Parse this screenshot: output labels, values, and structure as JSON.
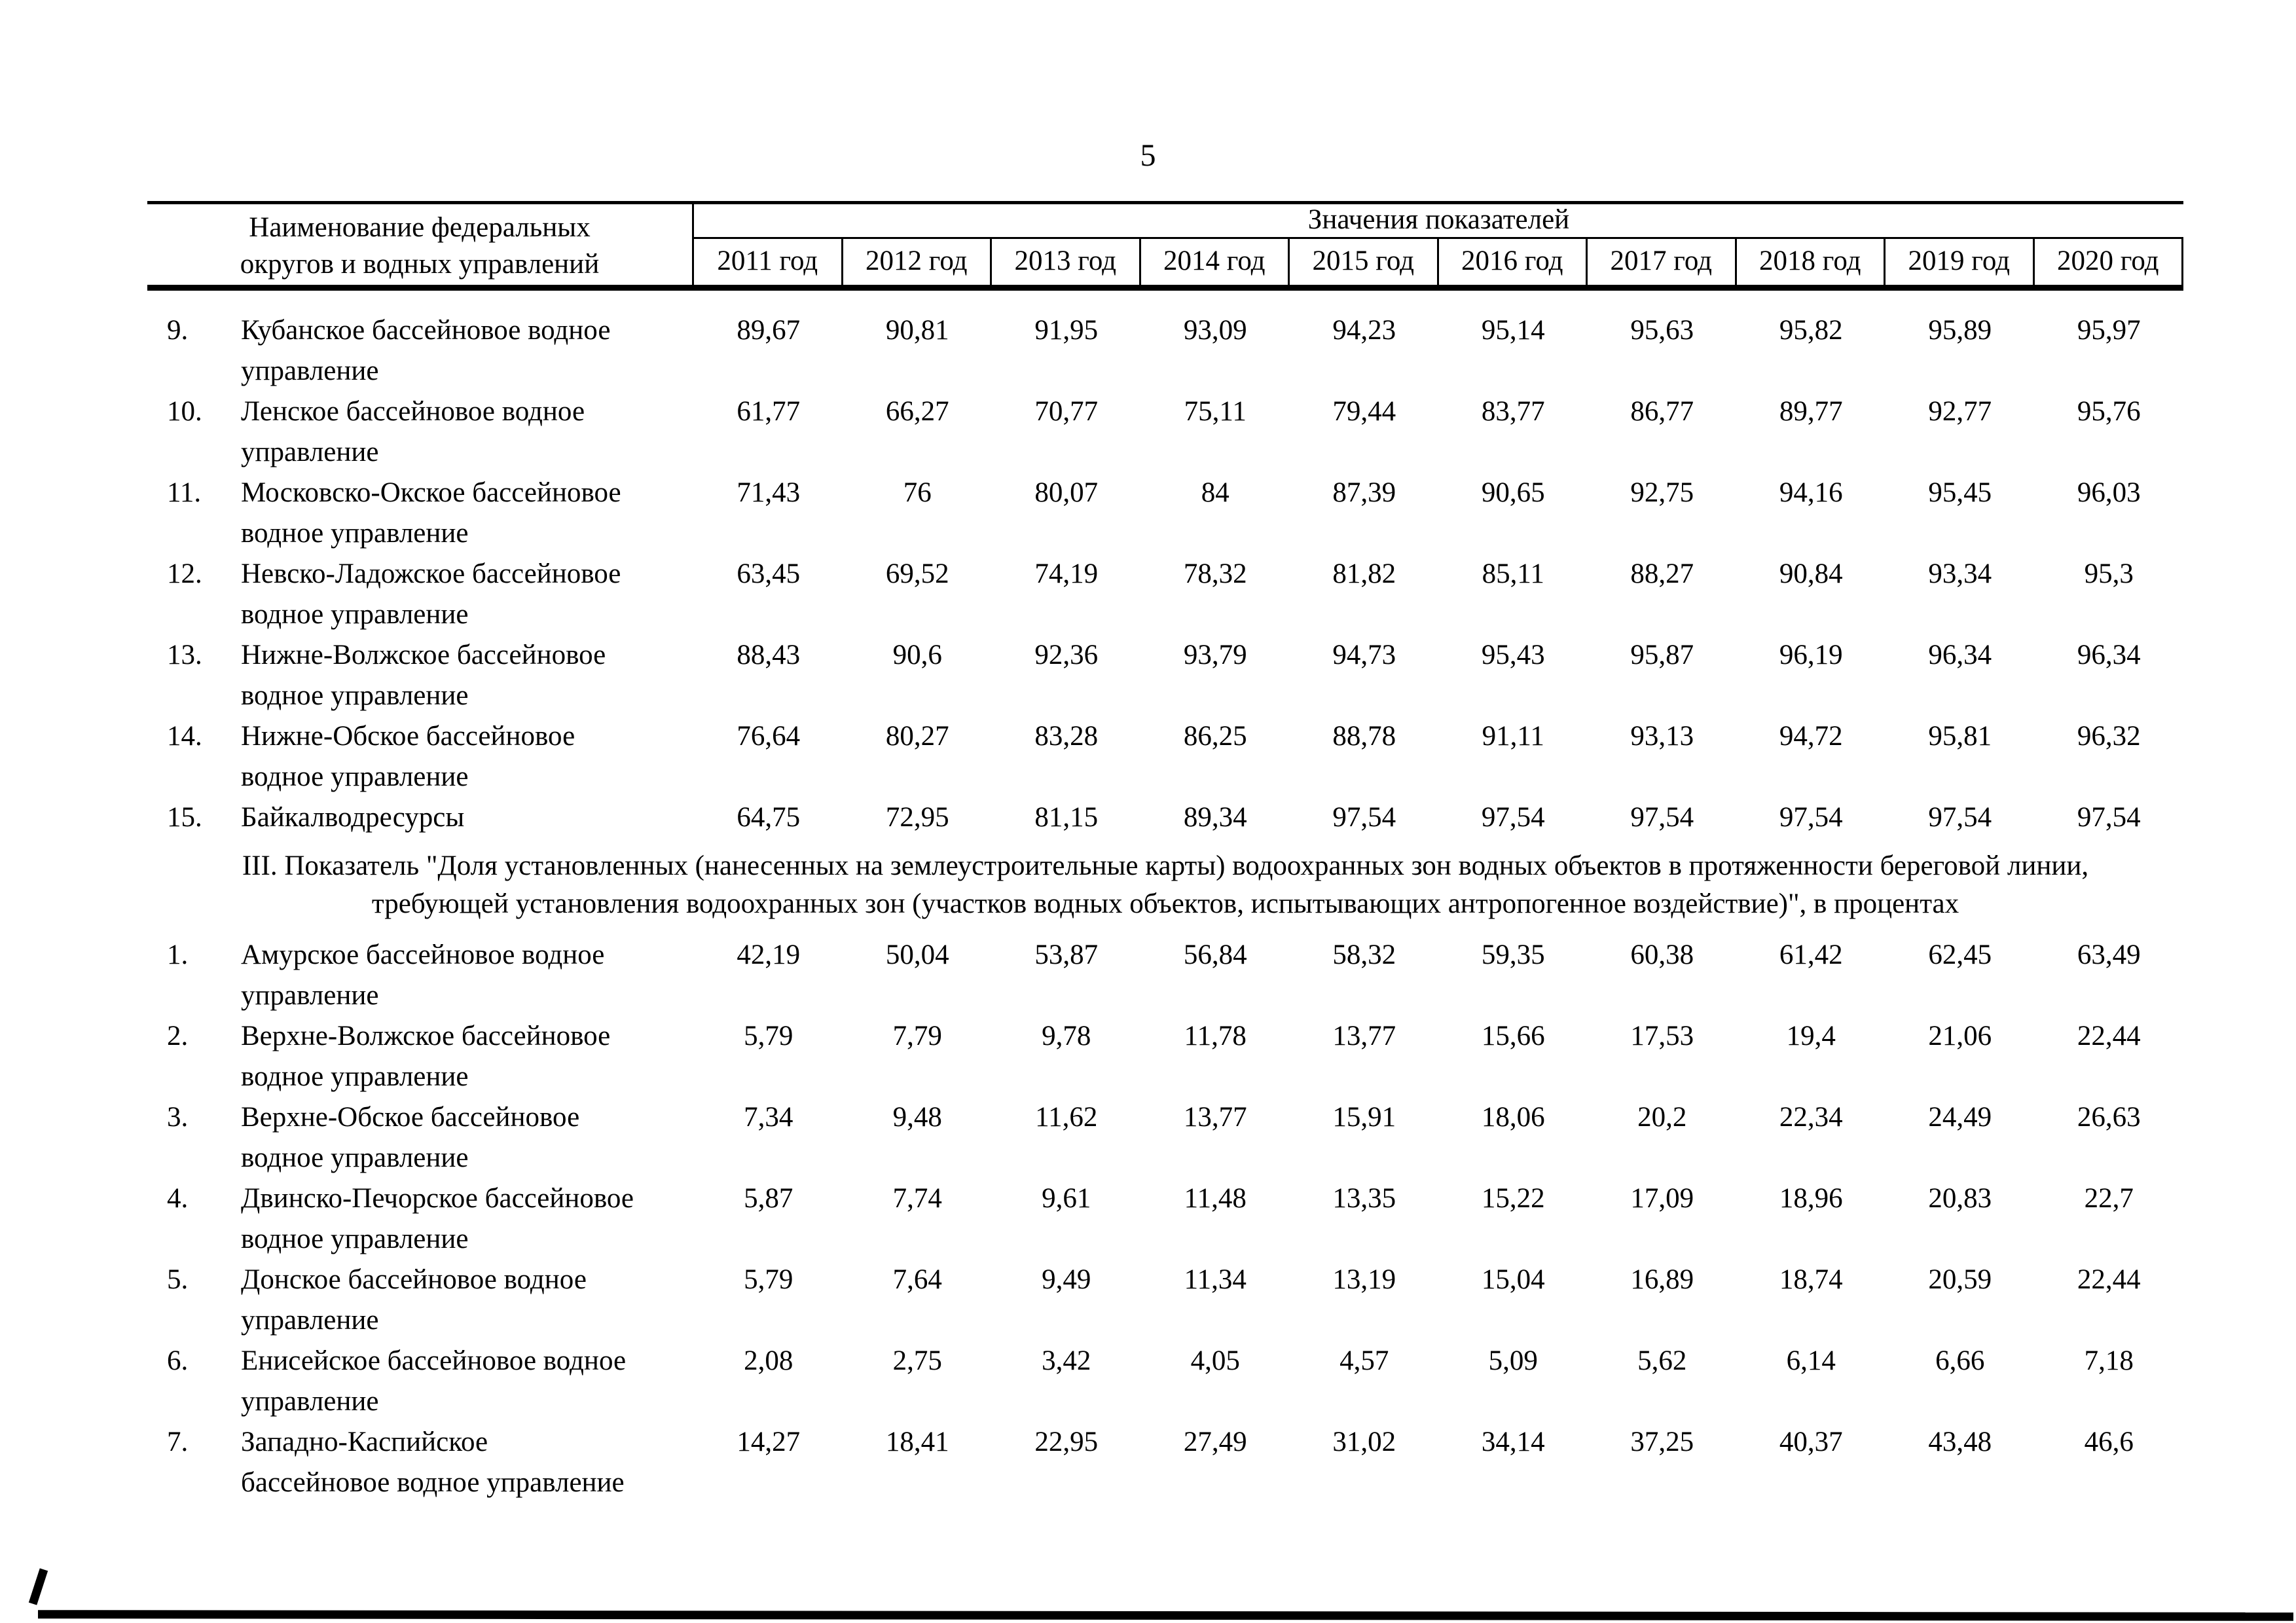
{
  "page": {
    "number": "5"
  },
  "table": {
    "name_header1": "Наименование федеральных",
    "name_header2": "округов и водных управлений",
    "values_header": "Значения показателей",
    "years": [
      "2011 год",
      "2012 год",
      "2013 год",
      "2014 год",
      "2015 год",
      "2016 год",
      "2017 год",
      "2018 год",
      "2019 год",
      "2020 год"
    ],
    "section2_rows": [
      {
        "num": "9.",
        "name1": "Кубанское бассейновое водное",
        "name2": "управление",
        "values": [
          "89,67",
          "90,81",
          "91,95",
          "93,09",
          "94,23",
          "95,14",
          "95,63",
          "95,82",
          "95,89",
          "95,97"
        ]
      },
      {
        "num": "10.",
        "name1": "Ленское бассейновое водное",
        "name2": "управление",
        "values": [
          "61,77",
          "66,27",
          "70,77",
          "75,11",
          "79,44",
          "83,77",
          "86,77",
          "89,77",
          "92,77",
          "95,76"
        ]
      },
      {
        "num": "11.",
        "name1": "Московско-Окское бассейновое",
        "name2": "водное управление",
        "values": [
          "71,43",
          "76",
          "80,07",
          "84",
          "87,39",
          "90,65",
          "92,75",
          "94,16",
          "95,45",
          "96,03"
        ]
      },
      {
        "num": "12.",
        "name1": "Невско-Ладожское бассейновое",
        "name2": "водное управление",
        "values": [
          "63,45",
          "69,52",
          "74,19",
          "78,32",
          "81,82",
          "85,11",
          "88,27",
          "90,84",
          "93,34",
          "95,3"
        ]
      },
      {
        "num": "13.",
        "name1": "Нижне-Волжское бассейновое",
        "name2": "водное управление",
        "values": [
          "88,43",
          "90,6",
          "92,36",
          "93,79",
          "94,73",
          "95,43",
          "95,87",
          "96,19",
          "96,34",
          "96,34"
        ]
      },
      {
        "num": "14.",
        "name1": "Нижне-Обское бассейновое",
        "name2": "водное управление",
        "values": [
          "76,64",
          "80,27",
          "83,28",
          "86,25",
          "88,78",
          "91,11",
          "93,13",
          "94,72",
          "95,81",
          "96,32"
        ]
      },
      {
        "num": "15.",
        "name1": "Байкалводресурсы",
        "name2": "",
        "values": [
          "64,75",
          "72,95",
          "81,15",
          "89,34",
          "97,54",
          "97,54",
          "97,54",
          "97,54",
          "97,54",
          "97,54"
        ]
      }
    ],
    "section3_title1": "III. Показатель \"Доля установленных (нанесенных на землеустроительные карты) водоохранных зон водных объектов в протяженности береговой линии,",
    "section3_title2": "требующей установления водоохранных зон (участков водных объектов, испытывающих антропогенное воздействие)\", в процентах",
    "section3_rows": [
      {
        "num": "1.",
        "name1": "Амурское бассейновое водное",
        "name2": "управление",
        "values": [
          "42,19",
          "50,04",
          "53,87",
          "56,84",
          "58,32",
          "59,35",
          "60,38",
          "61,42",
          "62,45",
          "63,49"
        ]
      },
      {
        "num": "2.",
        "name1": "Верхне-Волжское бассейновое",
        "name2": "водное управление",
        "values": [
          "5,79",
          "7,79",
          "9,78",
          "11,78",
          "13,77",
          "15,66",
          "17,53",
          "19,4",
          "21,06",
          "22,44"
        ]
      },
      {
        "num": "3.",
        "name1": "Верхне-Обское бассейновое",
        "name2": "водное управление",
        "values": [
          "7,34",
          "9,48",
          "11,62",
          "13,77",
          "15,91",
          "18,06",
          "20,2",
          "22,34",
          "24,49",
          "26,63"
        ]
      },
      {
        "num": "4.",
        "name1": "Двинско-Печорское бассейновое",
        "name2": "водное управление",
        "values": [
          "5,87",
          "7,74",
          "9,61",
          "11,48",
          "13,35",
          "15,22",
          "17,09",
          "18,96",
          "20,83",
          "22,7"
        ]
      },
      {
        "num": "5.",
        "name1": "Донское бассейновое водное",
        "name2": "управление",
        "values": [
          "5,79",
          "7,64",
          "9,49",
          "11,34",
          "13,19",
          "15,04",
          "16,89",
          "18,74",
          "20,59",
          "22,44"
        ]
      },
      {
        "num": "6.",
        "name1": "Енисейское бассейновое водное",
        "name2": "управление",
        "values": [
          "2,08",
          "2,75",
          "3,42",
          "4,05",
          "4,57",
          "5,09",
          "5,62",
          "6,14",
          "6,66",
          "7,18"
        ]
      },
      {
        "num": "7.",
        "name1": "Западно-Каспийское",
        "name2": "бассейновое водное управление",
        "values": [
          "14,27",
          "18,41",
          "22,95",
          "27,49",
          "31,02",
          "34,14",
          "37,25",
          "40,37",
          "43,48",
          "46,6"
        ]
      }
    ]
  }
}
